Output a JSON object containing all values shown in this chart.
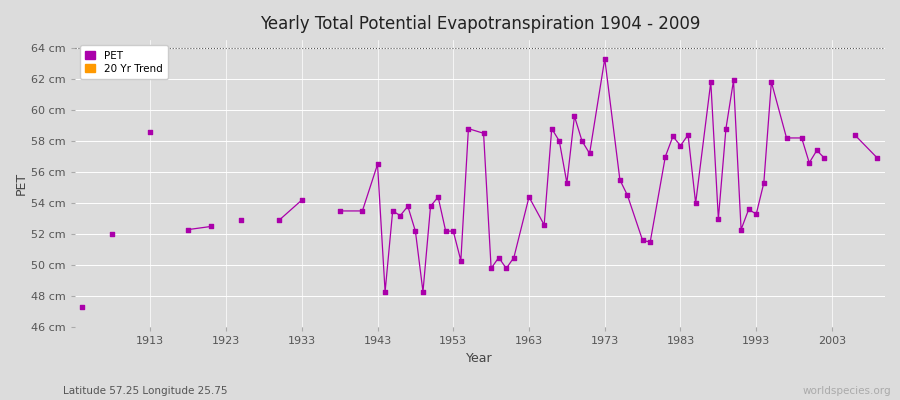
{
  "title": "Yearly Total Potential Evapotranspiration 1904 - 2009",
  "xlabel": "Year",
  "ylabel": "PET",
  "background_color": "#dcdcdc",
  "plot_bg_color": "#dcdcdc",
  "line_color": "#aa00aa",
  "trend_color": "#ff9900",
  "ylim": [
    46,
    64.5
  ],
  "yticks": [
    46,
    48,
    50,
    52,
    54,
    56,
    58,
    60,
    62,
    64
  ],
  "ytick_labels": [
    "46 cm",
    "48 cm",
    "50 cm",
    "52 cm",
    "54 cm",
    "56 cm",
    "58 cm",
    "60 cm",
    "62 cm",
    "64 cm"
  ],
  "xlim": [
    1903,
    2010
  ],
  "xtick_positions": [
    1913,
    1923,
    1933,
    1943,
    1953,
    1963,
    1973,
    1983,
    1993,
    2003
  ],
  "subtitle": "Latitude 57.25 Longitude 25.75",
  "watermark": "worldspecies.org",
  "pet_data": [
    [
      1904,
      47.3
    ],
    [
      1908,
      52.0
    ],
    [
      1913,
      58.6
    ],
    [
      1918,
      52.3
    ],
    [
      1921,
      52.5
    ],
    [
      1925,
      52.9
    ],
    [
      1930,
      52.9
    ],
    [
      1933,
      54.2
    ],
    [
      1938,
      53.5
    ],
    [
      1941,
      53.5
    ],
    [
      1943,
      56.5
    ],
    [
      1944,
      48.3
    ],
    [
      1945,
      53.5
    ],
    [
      1946,
      53.2
    ],
    [
      1947,
      53.8
    ],
    [
      1948,
      52.2
    ],
    [
      1949,
      48.3
    ],
    [
      1950,
      53.8
    ],
    [
      1951,
      54.4
    ],
    [
      1952,
      52.2
    ],
    [
      1953,
      52.2
    ],
    [
      1954,
      50.3
    ],
    [
      1955,
      58.8
    ],
    [
      1957,
      58.5
    ],
    [
      1958,
      49.8
    ],
    [
      1959,
      50.5
    ],
    [
      1960,
      49.8
    ],
    [
      1961,
      50.5
    ],
    [
      1963,
      54.4
    ],
    [
      1965,
      52.6
    ],
    [
      1966,
      58.8
    ],
    [
      1967,
      58.0
    ],
    [
      1968,
      55.3
    ],
    [
      1969,
      59.6
    ],
    [
      1970,
      58.0
    ],
    [
      1971,
      57.2
    ],
    [
      1973,
      63.3
    ],
    [
      1975,
      55.5
    ],
    [
      1976,
      54.5
    ],
    [
      1978,
      51.6
    ],
    [
      1979,
      51.5
    ],
    [
      1981,
      57.0
    ],
    [
      1982,
      58.3
    ],
    [
      1983,
      57.7
    ],
    [
      1984,
      58.4
    ],
    [
      1985,
      54.0
    ],
    [
      1987,
      61.8
    ],
    [
      1988,
      53.0
    ],
    [
      1989,
      58.8
    ],
    [
      1990,
      61.9
    ],
    [
      1991,
      52.3
    ],
    [
      1992,
      53.6
    ],
    [
      1993,
      53.3
    ],
    [
      1994,
      55.3
    ],
    [
      1995,
      61.8
    ],
    [
      1997,
      58.2
    ],
    [
      1999,
      58.2
    ],
    [
      2000,
      56.6
    ],
    [
      2001,
      57.4
    ],
    [
      2002,
      56.9
    ],
    [
      2006,
      58.4
    ],
    [
      2009,
      56.9
    ]
  ],
  "connect_threshold": 3
}
